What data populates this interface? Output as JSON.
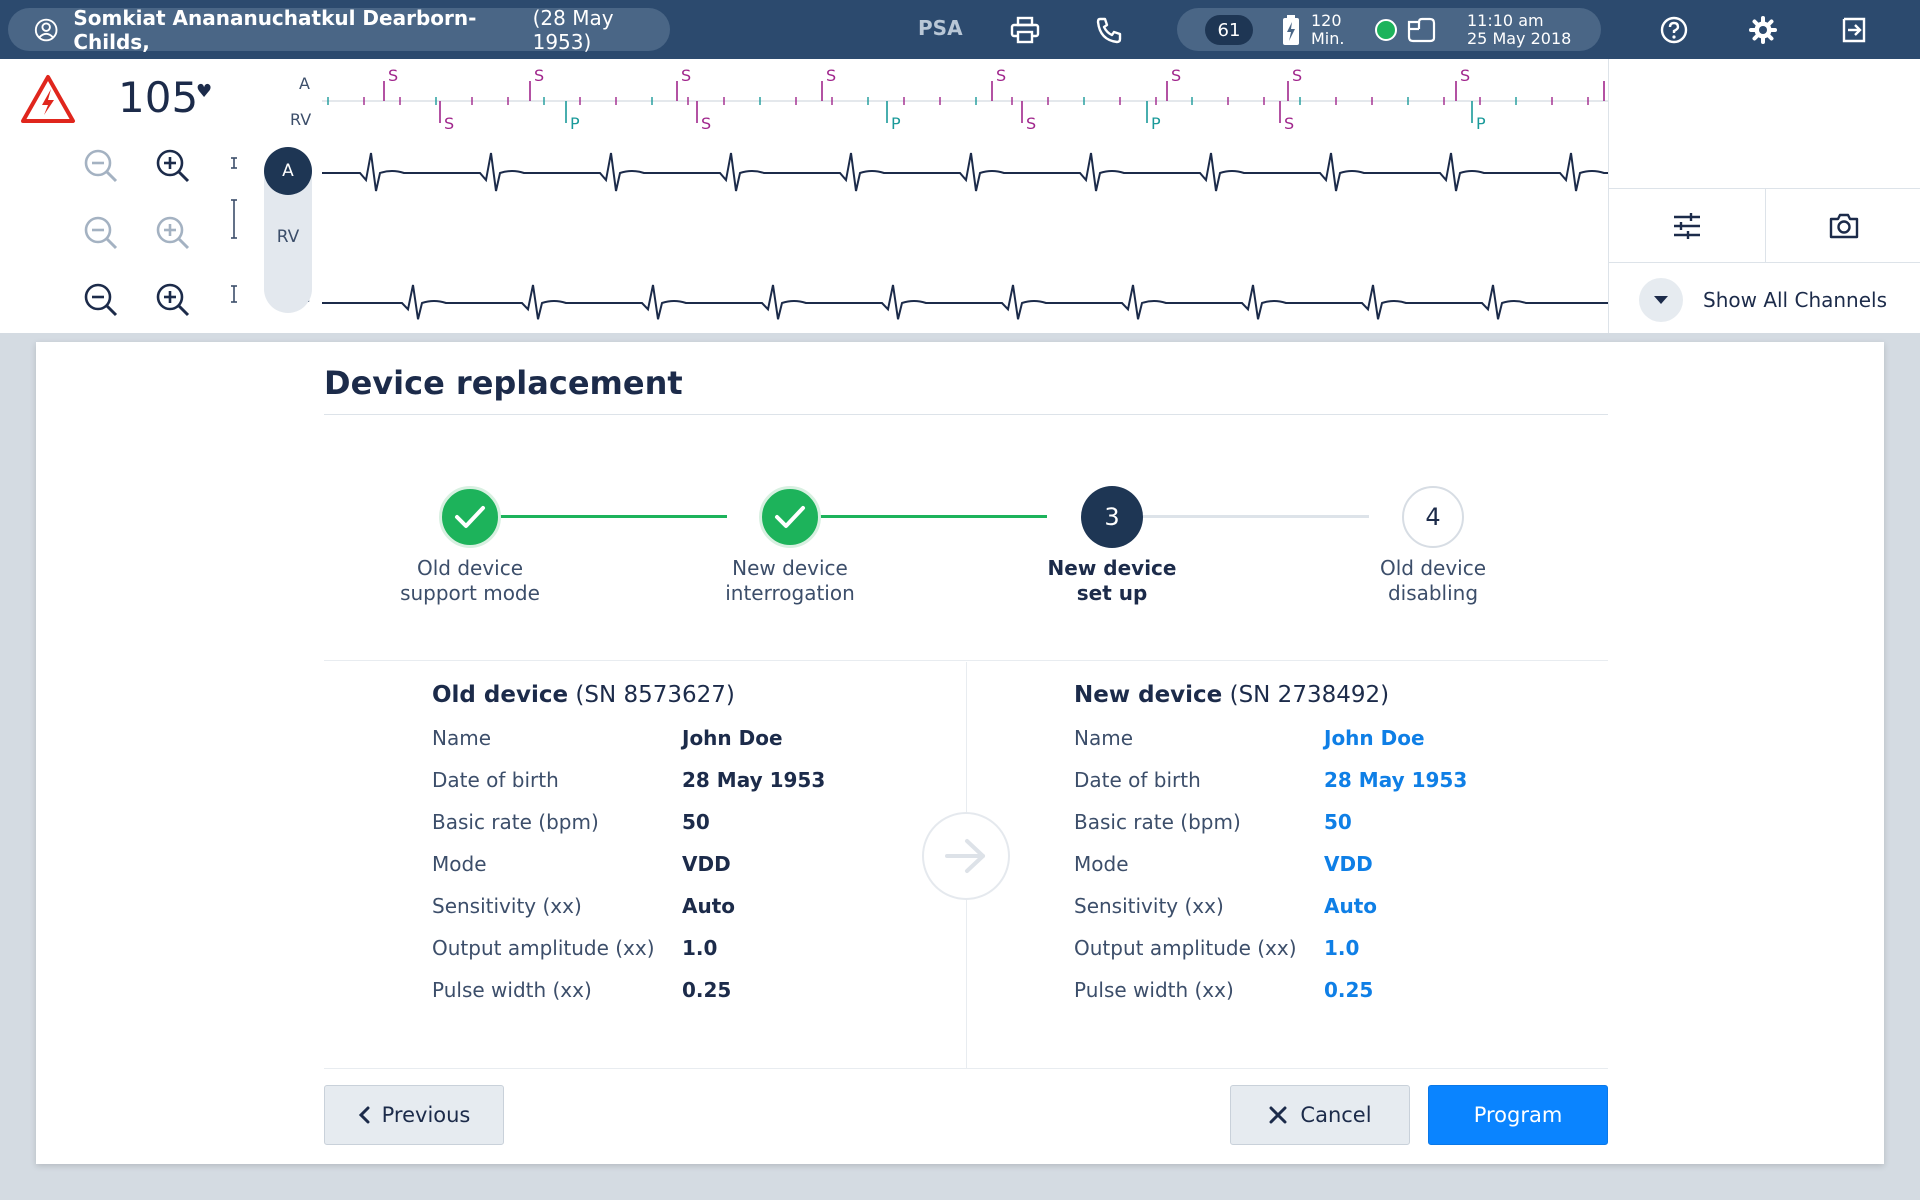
{
  "topbar": {
    "patient_name": "Somkiat Anananuchatkul Dearborn-Childs,",
    "patient_dob": "(28 May 1953)",
    "psa_label": "PSA",
    "heart_rate_badge": "61",
    "battery_value": "120",
    "battery_unit": "Min.",
    "time": "11:10 am",
    "date": "25 May 2018",
    "icons": [
      "user-circle-icon",
      "printer-icon",
      "phone-icon",
      "battery-icon",
      "telemetry-icon",
      "help-icon",
      "gear-icon",
      "logout-icon"
    ]
  },
  "ecg": {
    "heart_rate": "105",
    "heart_symbol": "♥",
    "marker_labels": {
      "a": "A",
      "rv": "RV"
    },
    "channel_switch": {
      "active": "A",
      "inactive": "RV"
    },
    "scale_label": "I",
    "a_markers": [
      "S",
      "S",
      "S",
      "S",
      "S",
      "S",
      "S",
      "S",
      "S"
    ],
    "rv_markers": [
      "S",
      "P",
      "S",
      "P",
      "S",
      "P",
      "S",
      "P"
    ]
  },
  "right_panel": {
    "show_all_label": "Show All Channels",
    "icons": [
      "sliders-icon",
      "camera-icon",
      "chevron-down-icon"
    ]
  },
  "dialog": {
    "title": "Device replacement",
    "steps": [
      {
        "line1": "Old device",
        "line2": "support mode",
        "state": "done"
      },
      {
        "line1": "New device",
        "line2": "interrogation",
        "state": "done"
      },
      {
        "number": "3",
        "line1": "New device",
        "line2": "set up",
        "state": "active"
      },
      {
        "number": "4",
        "line1": "Old device",
        "line2": "disabling",
        "state": "todo"
      }
    ],
    "old_device": {
      "title": "Old device",
      "serial": "(SN 8573627)",
      "rows": [
        {
          "label": "Name",
          "value": "John Doe"
        },
        {
          "label": "Date of birth",
          "value": "28 May 1953"
        },
        {
          "label": "Basic rate (bpm)",
          "value": "50"
        },
        {
          "label": "Mode",
          "value": "VDD"
        },
        {
          "label": "Sensitivity (xx)",
          "value": "Auto"
        },
        {
          "label": "Output amplitude (xx)",
          "value": "1.0"
        },
        {
          "label": "Pulse width (xx)",
          "value": "0.25"
        }
      ]
    },
    "new_device": {
      "title": "New device",
      "serial": "(SN 2738492)",
      "rows": [
        {
          "label": "Name",
          "value": "John Doe"
        },
        {
          "label": "Date of birth",
          "value": "28 May 1953"
        },
        {
          "label": "Basic rate (bpm)",
          "value": "50"
        },
        {
          "label": "Mode",
          "value": "VDD"
        },
        {
          "label": "Sensitivity (xx)",
          "value": "Auto"
        },
        {
          "label": "Output amplitude (xx)",
          "value": "1.0"
        },
        {
          "label": "Pulse width (xx)",
          "value": "0.25"
        }
      ]
    },
    "buttons": {
      "previous": "Previous",
      "cancel": "Cancel",
      "program": "Program"
    }
  },
  "colors": {
    "topbar": "#2c4a6e",
    "pill": "#4a6686",
    "navy": "#1e3654",
    "success": "#1db35b",
    "primary": "#0a84ff",
    "marker_s": "#a0268c",
    "marker_p": "#1a9a9a",
    "alarm": "#e0261d"
  }
}
